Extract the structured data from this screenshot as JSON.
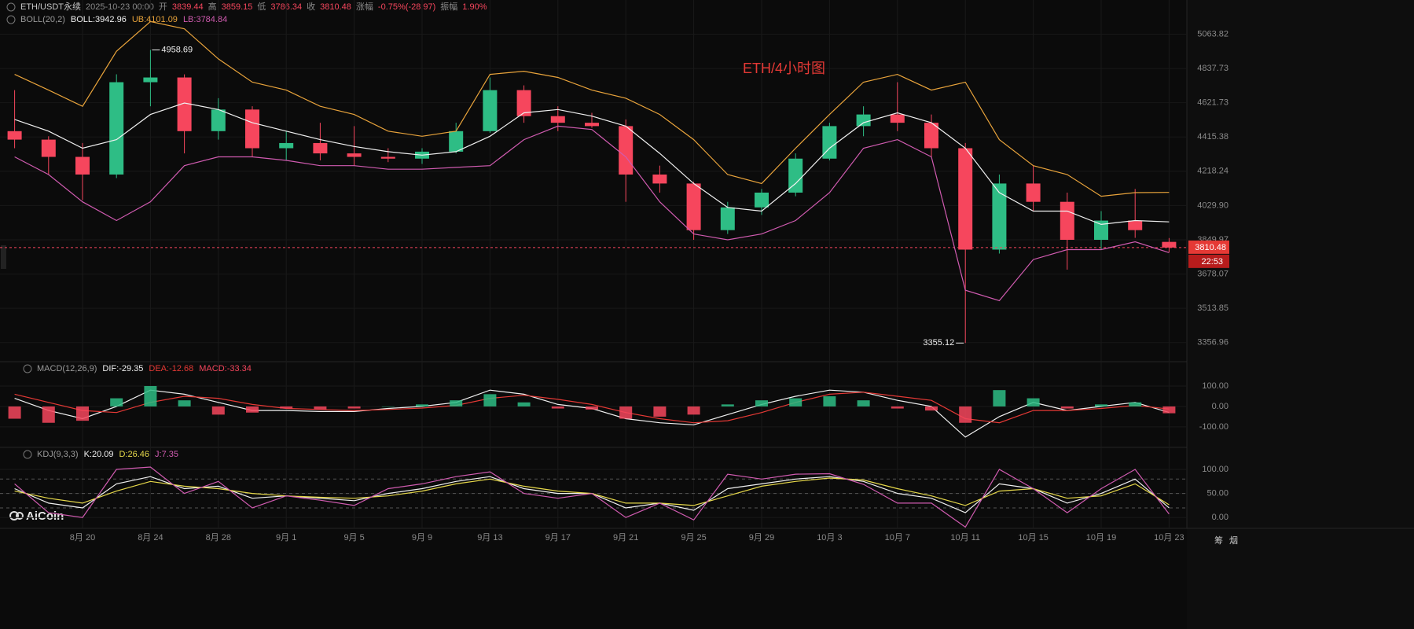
{
  "header": {
    "symbol": "ETH/USDT永续",
    "time": "2025-10-23 00:00",
    "items": [
      {
        "label": "开",
        "value": "3839.44"
      },
      {
        "label": "高",
        "value": "3859.15"
      },
      {
        "label": "低",
        "value": "3786.34"
      },
      {
        "label": "收",
        "value": "3810.48"
      },
      {
        "label": "涨幅",
        "value": "-0.75%(-28.97)"
      },
      {
        "label": "振幅",
        "value": "1.90%"
      }
    ]
  },
  "watermark": "AiCoin",
  "toolbar": [
    "筹",
    "烟"
  ],
  "countdown": "22:53",
  "chart_data": [
    {
      "type": "candlestick",
      "title": "ETH/4小时图",
      "indicator": "BOLL(20,2)",
      "yscale": "log",
      "grid": true,
      "up_color": "#2ebd85",
      "down_color": "#f6465d",
      "categories": [
        null,
        null,
        "8月 20",
        null,
        "8月 24",
        null,
        "8月 28",
        null,
        "9月 1",
        null,
        "9月 5",
        null,
        "9月 9",
        null,
        "9月 13",
        null,
        "9月 17",
        null,
        "9月 21",
        null,
        "9月 25",
        null,
        "9月 29",
        null,
        "10月 3",
        null,
        "10月 7",
        null,
        "10月 11",
        null,
        "10月 15",
        null,
        "10月 19",
        null,
        "10月 23"
      ],
      "open": [
        4450,
        4400,
        4300,
        4200,
        4750,
        4780,
        4450,
        4580,
        4350,
        4380,
        4320,
        4300,
        4290,
        4330,
        4450,
        4700,
        4540,
        4500,
        4480,
        4200,
        4150,
        3900,
        4020,
        4100,
        4290,
        4480,
        4550,
        4500,
        4350,
        3800,
        4150,
        4050,
        3850,
        3950,
        3839.44
      ],
      "high": [
        4700,
        4420,
        4380,
        4800,
        4958.69,
        4800,
        4650,
        4600,
        4450,
        4500,
        4480,
        4350,
        4350,
        4500,
        4780,
        4730,
        4600,
        4560,
        4520,
        4250,
        4160,
        4050,
        4120,
        4320,
        4500,
        4600,
        4750,
        4550,
        4380,
        4200,
        4250,
        4100,
        4000,
        4120,
        3859.15
      ],
      "low": [
        4350,
        4200,
        4060,
        4180,
        4600,
        4320,
        4400,
        4300,
        4280,
        4280,
        4250,
        4270,
        4260,
        4320,
        4440,
        4500,
        4450,
        4470,
        4050,
        4100,
        3850,
        3880,
        3980,
        4080,
        4280,
        4420,
        4450,
        4300,
        3355.12,
        3780,
        4000,
        3700,
        3800,
        3860,
        3786.34
      ],
      "close": [
        4400,
        4300,
        4200,
        4750,
        4780,
        4450,
        4580,
        4350,
        4380,
        4320,
        4300,
        4290,
        4330,
        4450,
        4700,
        4540,
        4500,
        4480,
        4200,
        4150,
        3900,
        4020,
        4100,
        4290,
        4480,
        4550,
        4500,
        4350,
        3800,
        4150,
        4050,
        3850,
        3950,
        3900,
        3810.48
      ],
      "series": [
        {
          "name": "BOLL:3942.96",
          "color": "#f0f0f0",
          "values": [
            4520,
            4450,
            4350,
            4400,
            4550,
            4620,
            4580,
            4500,
            4450,
            4400,
            4360,
            4330,
            4310,
            4330,
            4420,
            4560,
            4580,
            4540,
            4480,
            4320,
            4150,
            4020,
            4000,
            4150,
            4350,
            4500,
            4560,
            4500,
            4350,
            4100,
            4000,
            4000,
            3930,
            3950,
            3942.96
          ]
        },
        {
          "name": "UB:4101.09",
          "color": "#e8a33b",
          "values": [
            4800,
            4700,
            4600,
            4950,
            5150,
            5100,
            4900,
            4750,
            4700,
            4600,
            4550,
            4450,
            4420,
            4450,
            4800,
            4820,
            4780,
            4700,
            4650,
            4550,
            4400,
            4200,
            4150,
            4350,
            4550,
            4750,
            4800,
            4700,
            4750,
            4400,
            4250,
            4200,
            4080,
            4100,
            4101.09
          ]
        },
        {
          "name": "LB:3784.84",
          "color": "#d05bb0",
          "values": [
            4300,
            4200,
            4050,
            3950,
            4050,
            4250,
            4300,
            4300,
            4280,
            4250,
            4250,
            4230,
            4230,
            4240,
            4250,
            4400,
            4480,
            4460,
            4300,
            4050,
            3880,
            3850,
            3880,
            3950,
            4100,
            4350,
            4400,
            4300,
            3600,
            3550,
            3750,
            3800,
            3800,
            3840,
            3784.84
          ]
        }
      ],
      "ylim": [
        3290,
        5300
      ],
      "yticks": [
        5063.82,
        4837.73,
        4621.73,
        4415.38,
        4218.24,
        {
          "value": 4029.9,
          "label": "4029.90"
        },
        3849.97,
        3678.07,
        3513.85,
        3356.96
      ]
    },
    {
      "type": "macd",
      "indicator": "MACD(12,26,9)",
      "up_color": "#2ebd85",
      "down_color": "#f6465d",
      "series": [
        {
          "name": "DIF:-29.35",
          "color": "#f0f0f0",
          "values": [
            40,
            -20,
            -60,
            0,
            80,
            60,
            20,
            -20,
            -20,
            -25,
            -25,
            -10,
            0,
            20,
            80,
            60,
            10,
            -10,
            -60,
            -80,
            -90,
            -40,
            10,
            50,
            80,
            70,
            30,
            0,
            -150,
            -50,
            20,
            -20,
            0,
            20,
            -29.35
          ]
        },
        {
          "name": "DEA:-12.68",
          "color": "#e53935",
          "values": [
            60,
            20,
            -20,
            -30,
            20,
            50,
            40,
            10,
            -10,
            -15,
            -20,
            -15,
            -8,
            5,
            40,
            55,
            35,
            10,
            -30,
            -60,
            -80,
            -70,
            -30,
            20,
            60,
            70,
            50,
            30,
            -60,
            -80,
            -20,
            -20,
            -10,
            5,
            -12.68
          ]
        },
        {
          "name": "MACD:-33.34",
          "kind": "bar",
          "color": "#f6465d",
          "values": [
            -60,
            -80,
            -70,
            40,
            100,
            30,
            -40,
            -30,
            -10,
            -15,
            -10,
            0,
            10,
            30,
            60,
            20,
            -10,
            -15,
            -60,
            -50,
            -40,
            10,
            30,
            40,
            50,
            30,
            -10,
            -20,
            -80,
            80,
            40,
            -10,
            10,
            20,
            -33.34
          ]
        }
      ],
      "ylim": [
        -185,
        200
      ],
      "yticks": [
        {
          "value": 100,
          "label": "100.00"
        },
        {
          "value": 0,
          "label": "0.00"
        },
        {
          "value": -100,
          "label": "-100.00"
        }
      ]
    },
    {
      "type": "line",
      "indicator": "KDJ(9,3,3)",
      "series": [
        {
          "name": "K:20.09",
          "color": "#f0f0f0",
          "values": [
            60,
            30,
            20,
            70,
            85,
            60,
            65,
            40,
            45,
            40,
            35,
            50,
            60,
            75,
            85,
            60,
            50,
            50,
            20,
            30,
            15,
            60,
            70,
            80,
            85,
            75,
            50,
            40,
            10,
            70,
            60,
            30,
            50,
            80,
            20.09
          ]
        },
        {
          "name": "D:26.46",
          "color": "#e6d84a",
          "values": [
            55,
            40,
            30,
            55,
            75,
            65,
            60,
            50,
            45,
            42,
            40,
            45,
            55,
            70,
            80,
            65,
            55,
            50,
            30,
            30,
            25,
            45,
            65,
            75,
            82,
            78,
            60,
            45,
            25,
            55,
            60,
            40,
            45,
            70,
            26.46
          ]
        },
        {
          "name": "J:7.35",
          "color": "#d05bb0",
          "values": [
            70,
            10,
            0,
            100,
            105,
            50,
            75,
            20,
            45,
            36,
            25,
            60,
            70,
            85,
            95,
            50,
            40,
            50,
            0,
            30,
            -5,
            90,
            80,
            90,
            91,
            69,
            30,
            30,
            -20,
            100,
            60,
            10,
            60,
            100,
            7.35
          ]
        }
      ],
      "hlines": [
        80,
        50,
        20
      ],
      "ylim": [
        -16,
        136
      ],
      "yticks": [
        {
          "value": 100,
          "label": "100.00"
        },
        {
          "value": 50,
          "label": "50.00"
        },
        {
          "value": 0,
          "label": "0.00"
        }
      ]
    }
  ]
}
